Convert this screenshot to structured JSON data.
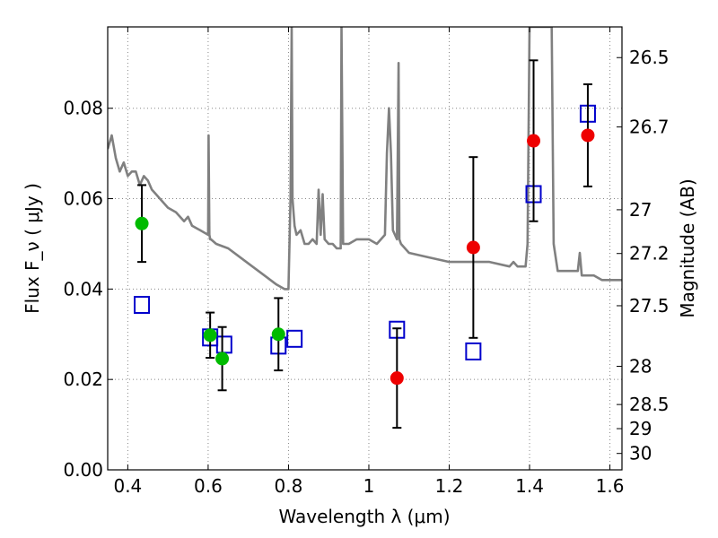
{
  "chart_data": {
    "type": "scatter",
    "xlabel": "Wavelength  λ (μm)",
    "ylabel": "Flux  F_ν  ( μJy )",
    "y2label": "Magnitude (AB)",
    "xlim": [
      0.35,
      1.63
    ],
    "ylim": [
      0.0,
      0.098
    ],
    "grid": true,
    "x_ticks": [
      0.4,
      0.6,
      0.8,
      1.0,
      1.2,
      1.4,
      1.6
    ],
    "x_tick_labels": [
      "0.4",
      "0.6",
      "0.8",
      "1",
      "1.2",
      "1.4",
      "1.6"
    ],
    "y_ticks": [
      0.0,
      0.02,
      0.04,
      0.06,
      0.08
    ],
    "y_tick_labels": [
      "0.00",
      "0.02",
      "0.04",
      "0.06",
      "0.08"
    ],
    "mag_ticks": [
      26.5,
      26.7,
      27,
      27.2,
      27.5,
      28,
      28.5,
      29,
      30
    ],
    "mag_tick_labels": [
      "26.5",
      "26.7",
      "27",
      "27.2",
      "27.5",
      "28",
      "28.5",
      "29",
      "30"
    ],
    "colors": {
      "template": "#808080",
      "green": "#00bb00",
      "red": "#ee0000",
      "model_box": "#0000cc",
      "errorbar": "#000000",
      "grid": "#888888"
    },
    "series": [
      {
        "kind": "line",
        "color": "#808080",
        "x": [
          0.35,
          0.36,
          0.37,
          0.38,
          0.39,
          0.4,
          0.41,
          0.42,
          0.43,
          0.44,
          0.45,
          0.46,
          0.47,
          0.48,
          0.5,
          0.52,
          0.54,
          0.55,
          0.56,
          0.58,
          0.6,
          0.601,
          0.603,
          0.605,
          0.607,
          0.62,
          0.65,
          0.68,
          0.71,
          0.74,
          0.77,
          0.79,
          0.8,
          0.805,
          0.808,
          0.81,
          0.815,
          0.82,
          0.83,
          0.84,
          0.85,
          0.86,
          0.87,
          0.875,
          0.88,
          0.885,
          0.89,
          0.9,
          0.91,
          0.92,
          0.93,
          0.932,
          0.936,
          0.94,
          0.95,
          0.97,
          1.0,
          1.02,
          1.04,
          1.045,
          1.05,
          1.055,
          1.06,
          1.07,
          1.074,
          1.076,
          1.08,
          1.1,
          1.15,
          1.2,
          1.25,
          1.3,
          1.35,
          1.36,
          1.37,
          1.38,
          1.39,
          1.395,
          1.4,
          1.405,
          1.41,
          1.455,
          1.46,
          1.47,
          1.5,
          1.52,
          1.525,
          1.53,
          1.54,
          1.56,
          1.58,
          1.6,
          1.63
        ],
        "y": [
          0.071,
          0.074,
          0.069,
          0.066,
          0.068,
          0.065,
          0.066,
          0.066,
          0.063,
          0.065,
          0.064,
          0.062,
          0.061,
          0.06,
          0.058,
          0.057,
          0.055,
          0.056,
          0.054,
          0.053,
          0.052,
          0.074,
          0.052,
          0.051,
          0.051,
          0.05,
          0.049,
          0.047,
          0.045,
          0.043,
          0.041,
          0.04,
          0.04,
          0.06,
          0.098,
          0.06,
          0.054,
          0.052,
          0.053,
          0.05,
          0.05,
          0.051,
          0.05,
          0.062,
          0.052,
          0.061,
          0.051,
          0.05,
          0.05,
          0.049,
          0.049,
          0.098,
          0.05,
          0.05,
          0.05,
          0.051,
          0.051,
          0.05,
          0.052,
          0.07,
          0.08,
          0.07,
          0.053,
          0.051,
          0.09,
          0.051,
          0.05,
          0.048,
          0.047,
          0.046,
          0.046,
          0.046,
          0.045,
          0.046,
          0.045,
          0.045,
          0.045,
          0.05,
          0.098,
          0.098,
          0.098,
          0.098,
          0.05,
          0.044,
          0.044,
          0.044,
          0.048,
          0.043,
          0.043,
          0.043,
          0.042,
          0.042,
          0.042
        ]
      },
      {
        "kind": "points_errorbars",
        "color": "#00bb00",
        "x": [
          0.435,
          0.605,
          0.635,
          0.775
        ],
        "y": [
          0.0545,
          0.0298,
          0.0246,
          0.03
        ],
        "yerr": [
          0.0085,
          0.005,
          0.007,
          0.008
        ]
      },
      {
        "kind": "points_errorbars",
        "color": "#ee0000",
        "x": [
          1.07,
          1.26,
          1.41,
          1.545
        ],
        "y": [
          0.0203,
          0.0492,
          0.0728,
          0.074
        ],
        "yerr": [
          0.011,
          0.02,
          0.0178,
          0.0113
        ]
      },
      {
        "kind": "open_squares",
        "color": "#0000cc",
        "x": [
          0.435,
          0.605,
          0.64,
          0.775,
          0.815,
          1.07,
          1.26,
          1.41,
          1.545
        ],
        "y": [
          0.0365,
          0.0293,
          0.0277,
          0.0275,
          0.029,
          0.031,
          0.0262,
          0.061,
          0.0788
        ]
      }
    ]
  }
}
